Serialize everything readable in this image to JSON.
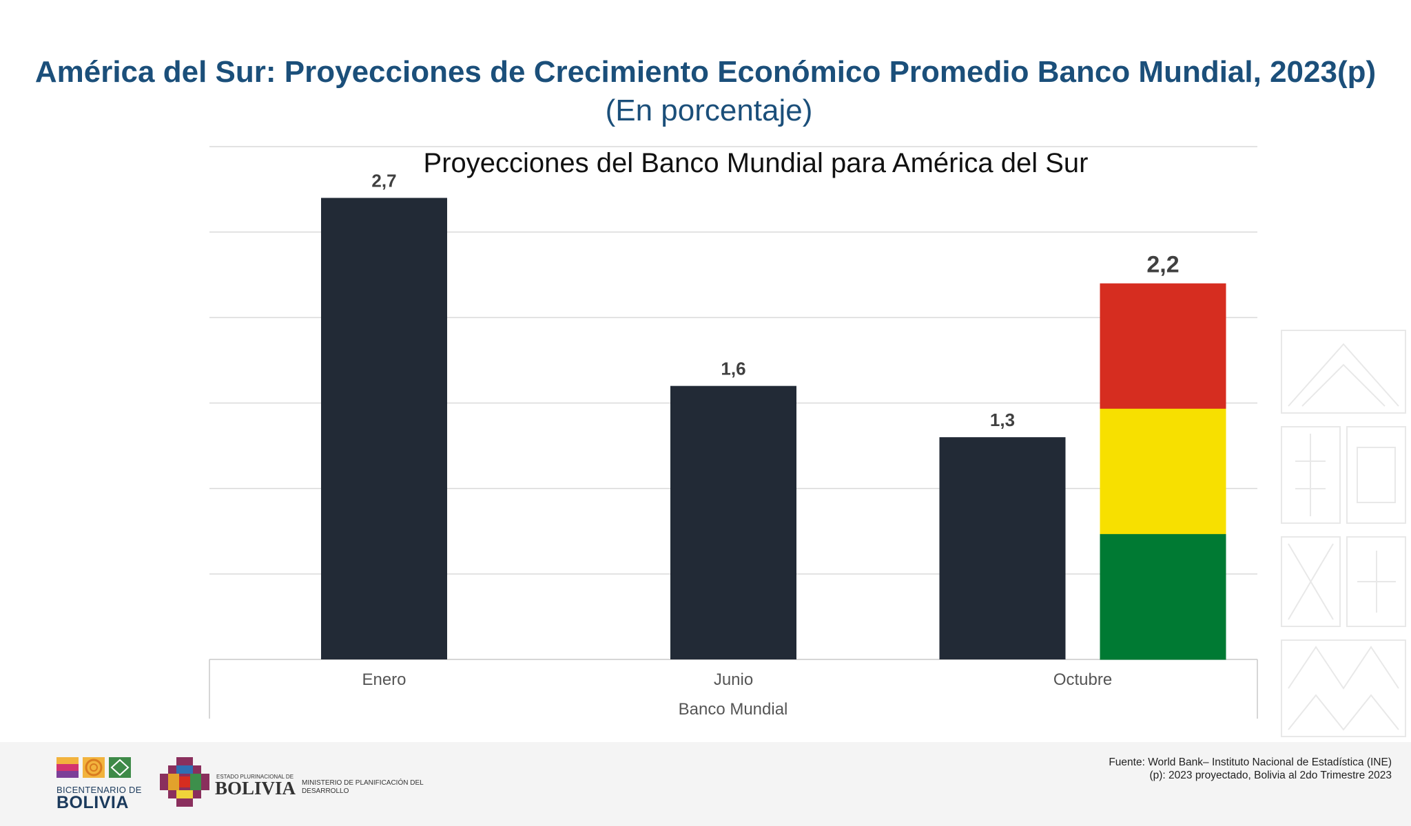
{
  "header": {
    "title": "América del Sur: Proyecciones de Crecimiento Económico Promedio Banco Mundial, 2023(p)",
    "subtitle": "(En porcentaje)"
  },
  "chart_data": {
    "type": "bar",
    "title": "Proyecciones del Banco Mundial para América del Sur",
    "xlabel": "Banco Mundial",
    "ylabel": "",
    "ylim": [
      0,
      3
    ],
    "grid": true,
    "categories": [
      "Enero",
      "Junio",
      "Octubre"
    ],
    "series": [
      {
        "values": [
          2.7,
          1.6,
          1.3
        ],
        "labels": [
          "2,7",
          "1,6",
          "1,3"
        ],
        "color": "#222a36"
      },
      {
        "values": [
          null,
          null,
          2.2
        ],
        "labels": [
          "",
          "",
          "2,2"
        ],
        "colors": [
          "#d62d20",
          "#f7e000",
          "#007a33"
        ]
      }
    ]
  },
  "footer": {
    "bicentenario_line1": "BICENTENARIO DE",
    "bicentenario_line2": "BOLIVIA",
    "estado_label": "ESTADO PLURINACIONAL DE",
    "bolivia_label": "BOLIVIA",
    "ministerio_label": "MINISTERIO DE PLANIFICACIÓN DEL DESARROLLO",
    "source": "Fuente: World Bank– Instituto Nacional de Estadística (INE)",
    "note": "(p): 2023 proyectado, Bolivia al 2do Trimestre 2023"
  }
}
